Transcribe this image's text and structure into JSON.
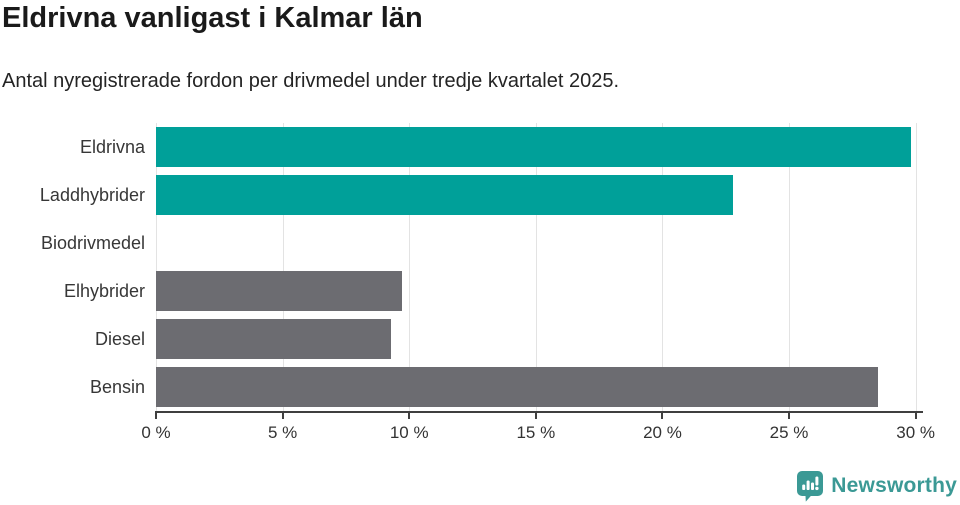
{
  "header": {
    "title": "Eldrivna vanligast i Kalmar län",
    "subtitle": "Antal nyregistrerade fordon per drivmedel under tredje kvartalet 2025."
  },
  "chart_data": {
    "type": "bar",
    "orientation": "horizontal",
    "title": "Eldrivna vanligast i Kalmar län",
    "subtitle": "Antal nyregistrerade fordon per drivmedel under tredje kvartalet 2025.",
    "categories": [
      "Eldrivna",
      "Laddhybrider",
      "Biodrivmedel",
      "Elhybrider",
      "Diesel",
      "Bensin"
    ],
    "values": [
      29.8,
      22.8,
      0,
      9.7,
      9.3,
      28.5
    ],
    "unit": "%",
    "xlabel": "",
    "ylabel": "",
    "xlim": [
      0,
      30.25
    ],
    "x_ticks": [
      0,
      5,
      10,
      15,
      20,
      25,
      30
    ],
    "x_tick_labels": [
      "0 %",
      "5 %",
      "10 %",
      "15 %",
      "20 %",
      "25 %",
      "30 %"
    ],
    "grid": true,
    "legend": false,
    "bar_colors": [
      "#00a099",
      "#00a099",
      "#6c6c71",
      "#6c6c71",
      "#6c6c71",
      "#6c6c71"
    ]
  },
  "colors": {
    "highlight": "#00a099",
    "neutral": "#6c6c71",
    "gridline": "#e3e3e3",
    "axis": "#3f3f3f",
    "title_text": "#1a1a1a",
    "label_text": "#373737",
    "brand_teal": "#3b9995"
  },
  "footer": {
    "brand": "Newsworthy"
  }
}
